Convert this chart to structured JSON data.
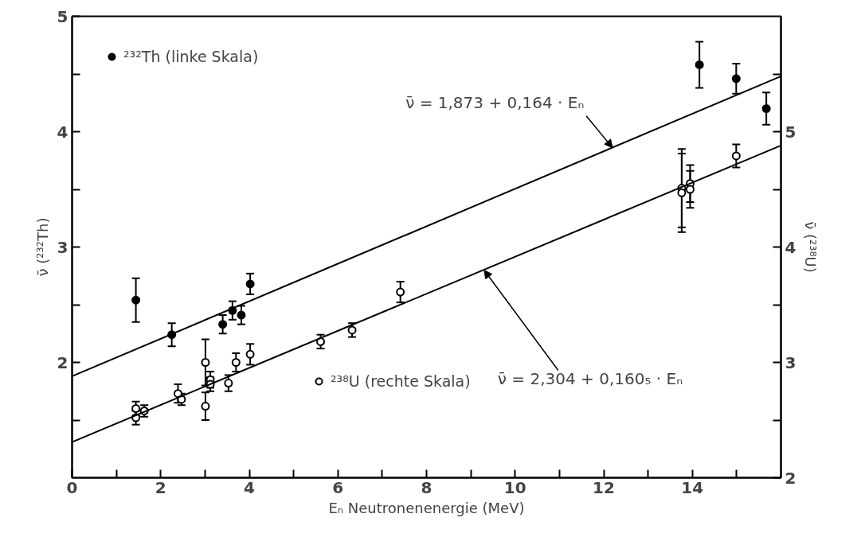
{
  "chart_data": {
    "type": "scatter",
    "xlabel": "Eₙ Neutronenenergie (MeV)",
    "ylabel": "ν̄ (²³²Th)",
    "y2label": "ν̄ (²³⁸U)",
    "xlim": [
      0,
      16
    ],
    "ylim": [
      1,
      5
    ],
    "y2lim": [
      2,
      6
    ],
    "xticks": [
      0,
      {
        "value": 1,
        "label": null
      },
      2,
      {
        "value": 3,
        "label": null
      },
      4,
      {
        "value": 5,
        "label": null
      },
      6,
      {
        "value": 7,
        "label": null
      },
      8,
      {
        "value": 9,
        "label": null
      },
      10,
      {
        "value": 11,
        "label": null
      },
      12,
      {
        "value": 13,
        "label": null
      },
      14,
      {
        "value": 15,
        "label": null
      }
    ],
    "yticks": [
      {
        "value": 1.5,
        "label": null
      },
      2,
      {
        "value": 2.5,
        "label": null
      },
      3,
      {
        "value": 3.5,
        "label": null
      },
      4,
      {
        "value": 4.5,
        "label": null
      },
      5
    ],
    "y2ticks": [
      2,
      {
        "value": 2.5,
        "label": null
      },
      3,
      {
        "value": 3.5,
        "label": null
      },
      4,
      {
        "value": 4.5,
        "label": null
      },
      5,
      {
        "value": 5.5,
        "label": null
      }
    ],
    "grid": false,
    "legend": "top left",
    "marker": "circle",
    "series": [
      {
        "name": "²³²Th (linke Skala)",
        "color": "#000000",
        "x": [
          1.44,
          2.25,
          3.4,
          3.62,
          3.82,
          4.02,
          14.16,
          14.99,
          15.67
        ],
        "values": [
          2.54,
          2.24,
          2.33,
          2.45,
          2.41,
          2.68,
          4.58,
          4.46,
          4.2
        ],
        "errors": [
          0.19,
          0.1,
          0.08,
          0.08,
          0.08,
          0.09,
          0.2,
          0.13,
          0.14
        ]
      },
      {
        "name": "²³⁸U (rechte Skala)",
        "color": "#000000",
        "axis": "y2",
        "x": [
          1.44,
          1.44,
          1.63,
          2.39,
          2.47,
          3.01,
          3.01,
          3.12,
          3.12,
          3.53,
          3.7,
          4.02,
          5.61,
          6.32,
          7.41,
          13.76,
          13.76,
          13.95,
          13.95,
          14.99
        ],
        "values": [
          2.6,
          2.52,
          2.58,
          2.73,
          2.68,
          3.0,
          2.62,
          2.85,
          2.81,
          2.82,
          3.0,
          3.07,
          3.18,
          3.28,
          3.61,
          4.51,
          4.47,
          4.55,
          4.5,
          4.79
        ],
        "errors": [
          0.06,
          0.06,
          0.05,
          0.08,
          0.05,
          0.2,
          0.12,
          0.07,
          0.06,
          0.07,
          0.08,
          0.09,
          0.06,
          0.06,
          0.09,
          0.34,
          0.34,
          0.16,
          0.16,
          0.1
        ]
      },
      {
        "type": "line",
        "marker": "none",
        "color": "#000000",
        "x": [
          0,
          16
        ],
        "values": [
          1.88,
          4.48
        ]
      },
      {
        "type": "line",
        "marker": "none",
        "color": "#000000",
        "axis": "y2",
        "x": [
          0,
          16
        ],
        "values": [
          2.31,
          4.88
        ]
      }
    ],
    "annotations": [
      {
        "text": "ν̄ = 1,873 + 0,164 · Eₙ",
        "x": 12.2,
        "y": 3.86
      },
      {
        "text": "ν̄ = 2,304 + 0,160₅ · Eₙ",
        "x": 9.3,
        "y": 2.8
      }
    ]
  }
}
